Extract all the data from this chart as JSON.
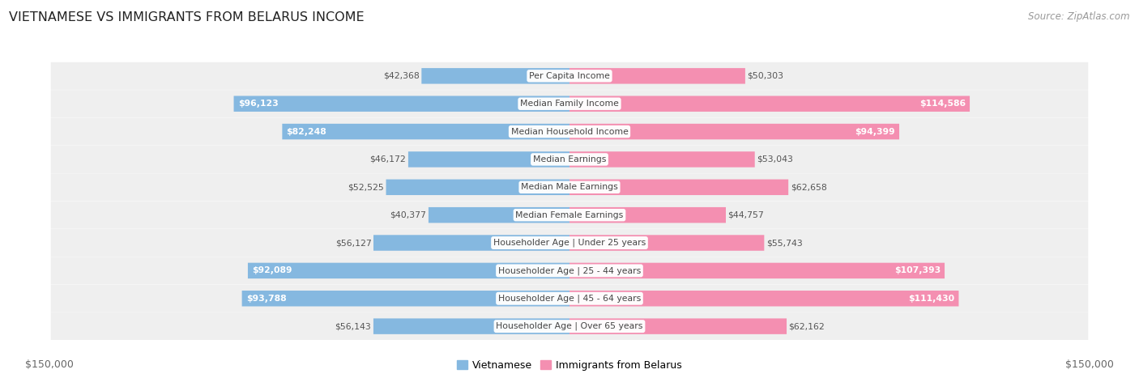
{
  "title": "VIETNAMESE VS IMMIGRANTS FROM BELARUS INCOME",
  "source": "Source: ZipAtlas.com",
  "categories": [
    "Per Capita Income",
    "Median Family Income",
    "Median Household Income",
    "Median Earnings",
    "Median Male Earnings",
    "Median Female Earnings",
    "Householder Age | Under 25 years",
    "Householder Age | 25 - 44 years",
    "Householder Age | 45 - 64 years",
    "Householder Age | Over 65 years"
  ],
  "vietnamese_values": [
    42368,
    96123,
    82248,
    46172,
    52525,
    40377,
    56127,
    92089,
    93788,
    56143
  ],
  "belarus_values": [
    50303,
    114586,
    94399,
    53043,
    62658,
    44757,
    55743,
    107393,
    111430,
    62162
  ],
  "vietnamese_labels": [
    "$42,368",
    "$96,123",
    "$82,248",
    "$46,172",
    "$52,525",
    "$40,377",
    "$56,127",
    "$92,089",
    "$93,788",
    "$56,143"
  ],
  "belarus_labels": [
    "$50,303",
    "$114,586",
    "$94,399",
    "$53,043",
    "$62,658",
    "$44,757",
    "$55,743",
    "$107,393",
    "$111,430",
    "$62,162"
  ],
  "max_value": 150000,
  "color_vietnamese": "#85b8e0",
  "color_belarus": "#f48fb1",
  "row_bg_color": "#efefef",
  "xlabel_left": "$150,000",
  "xlabel_right": "$150,000",
  "legend_vietnamese": "Vietnamese",
  "legend_belarus": "Immigrants from Belarus",
  "title_fontsize": 11.5,
  "source_fontsize": 8.5,
  "bar_label_fontsize": 7.8,
  "cat_label_fontsize": 7.8,
  "tick_fontsize": 9,
  "white_text_threshold_viet": 0.5,
  "white_text_threshold_bela": 0.58
}
